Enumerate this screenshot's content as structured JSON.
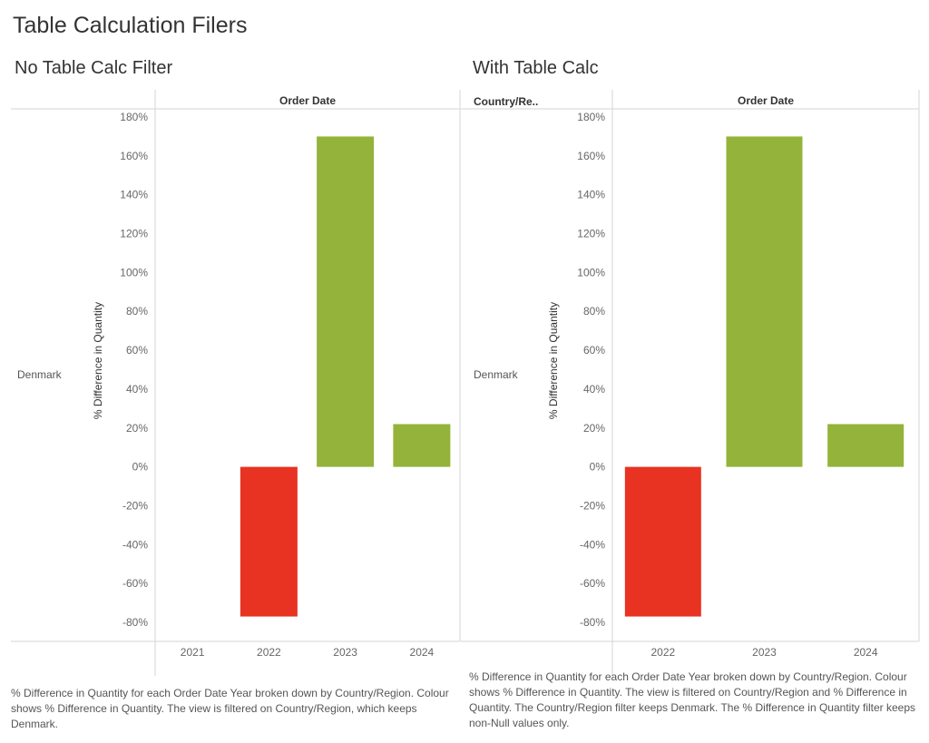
{
  "dashboard": {
    "title": "Table Calculation Filers"
  },
  "sheets": [
    {
      "title": "No Table Calc Filter",
      "row_header": "",
      "column_header": "Order Date",
      "row_label": "Denmark",
      "caption": "% Difference in Quantity for each Order Date Year broken down by Country/Region. Colour shows % Difference in Quantity. The view is filtered on Country/Region, which keeps Denmark."
    },
    {
      "title": "With Table Calc",
      "row_header": "Country/Re..",
      "column_header": "Order Date",
      "row_label": "Denmark",
      "caption": "% Difference in Quantity for each Order Date Year broken down by Country/Region. Colour shows % Difference in Quantity. The view is filtered on Country/Region and % Difference in Quantity. The Country/Region filter keeps Denmark. The % Difference in Quantity filter keeps non-Null values only."
    }
  ],
  "colors": {
    "positive": "#94b33a",
    "negative": "#e83323",
    "grid": "#d4d4d4",
    "axis_text": "#666666"
  },
  "chart_data": [
    {
      "type": "bar",
      "title": "No Table Calc Filter",
      "categories": [
        "2021",
        "2022",
        "2023",
        "2024"
      ],
      "values": [
        null,
        -77,
        170,
        22
      ],
      "xlabel": "Order Date",
      "ylabel": "% Difference in Quantity",
      "ylim": [
        -80,
        180
      ],
      "ytick_values": [
        180,
        160,
        140,
        120,
        100,
        80,
        60,
        40,
        20,
        0,
        -20,
        -40,
        -60,
        -80
      ],
      "ytick_labels": [
        "180%",
        "160%",
        "140%",
        "120%",
        "100%",
        "80%",
        "60%",
        "40%",
        "20%",
        "0%",
        "-20%",
        "-40%",
        "-60%",
        "-80%"
      ],
      "grid": false,
      "legend": "none"
    },
    {
      "type": "bar",
      "title": "With Table Calc",
      "categories": [
        "2022",
        "2023",
        "2024"
      ],
      "values": [
        -77,
        170,
        22
      ],
      "xlabel": "Order Date",
      "ylabel": "% Difference in Quantity",
      "ylim": [
        -80,
        180
      ],
      "ytick_values": [
        180,
        160,
        140,
        120,
        100,
        80,
        60,
        40,
        20,
        0,
        -20,
        -40,
        -60,
        -80
      ],
      "ytick_labels": [
        "180%",
        "160%",
        "140%",
        "120%",
        "100%",
        "80%",
        "60%",
        "40%",
        "20%",
        "0%",
        "-20%",
        "-40%",
        "-60%",
        "-80%"
      ],
      "grid": false,
      "legend": "none"
    }
  ]
}
